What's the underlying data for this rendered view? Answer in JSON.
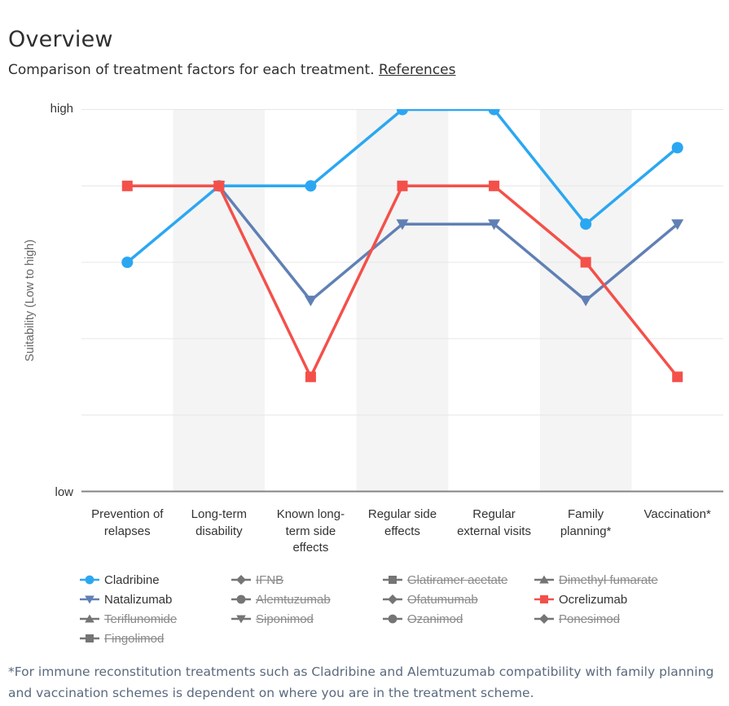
{
  "header": {
    "title": "Overview",
    "subtitle": "Comparison of treatment factors for each treatment.",
    "references_label": "References"
  },
  "chart_data": {
    "type": "line",
    "title": "Overview",
    "categories": [
      "Prevention of relapses",
      "Long-term disability",
      "Known long-term side effects",
      "Regular side effects",
      "Regular external visits",
      "Family planning*",
      "Vaccination*"
    ],
    "xlabel": "",
    "ylabel": "Suitability (Low to high)",
    "y_axis": {
      "high_label": "high",
      "low_label": "low",
      "min": 0,
      "max": 5,
      "gridlines": true,
      "numeric_ticks_hidden": true
    },
    "plot_band_color": "#f4f4f4",
    "plot_bands_on_category_indexes": [
      1,
      3,
      5
    ],
    "gridline_color": "#e6e6e6",
    "axis_line_color": "#848484",
    "legend_position": "bottom",
    "series": [
      {
        "name": "Cladribine",
        "color": "#2BA7F2",
        "marker": "circle",
        "visible": true,
        "values": [
          3,
          4,
          4,
          5,
          5,
          3.5,
          4.5
        ]
      },
      {
        "name": "Natalizumab",
        "color": "#6080B5",
        "marker": "triangle-down",
        "visible": true,
        "values": [
          null,
          4,
          2.5,
          3.5,
          3.5,
          2.5,
          3.5
        ]
      },
      {
        "name": "Ocrelizumab",
        "color": "#F4504A",
        "marker": "square",
        "visible": true,
        "values": [
          4,
          4,
          1.5,
          4,
          4,
          3,
          1.5
        ]
      }
    ],
    "hidden_series": [
      "IFNB",
      "Glatiramer acetate",
      "Dimethyl fumarate",
      "Alemtuzumab",
      "Ofatumumab",
      "Teriflunomide",
      "Siponimod",
      "Ozanimod",
      "Ponesimod",
      "Fingolimod"
    ]
  },
  "legend": {
    "disabled_color": "#757575",
    "items": [
      {
        "label": "Cladribine",
        "marker": "circle",
        "color": "#2BA7F2",
        "active": true
      },
      {
        "label": "IFNB",
        "marker": "diamond",
        "color": "#757575",
        "active": false
      },
      {
        "label": "Glatiramer acetate",
        "marker": "square",
        "color": "#757575",
        "active": false
      },
      {
        "label": "Dimethyl fumarate",
        "marker": "triangle",
        "color": "#757575",
        "active": false
      },
      {
        "label": "Natalizumab",
        "marker": "triangle-down",
        "color": "#6080B5",
        "active": true
      },
      {
        "label": "Alemtuzumab",
        "marker": "circle",
        "color": "#757575",
        "active": false
      },
      {
        "label": "Ofatumumab",
        "marker": "diamond",
        "color": "#757575",
        "active": false
      },
      {
        "label": "Ocrelizumab",
        "marker": "square",
        "color": "#F4504A",
        "active": true
      },
      {
        "label": "Teriflunomide",
        "marker": "triangle",
        "color": "#757575",
        "active": false
      },
      {
        "label": "Siponimod",
        "marker": "triangle-down",
        "color": "#757575",
        "active": false
      },
      {
        "label": "Ozanimod",
        "marker": "circle",
        "color": "#757575",
        "active": false
      },
      {
        "label": "Ponesimod",
        "marker": "diamond",
        "color": "#757575",
        "active": false
      },
      {
        "label": "Fingolimod",
        "marker": "square",
        "color": "#757575",
        "active": false
      }
    ]
  },
  "footnote": "*For immune reconstitution treatments such as Cladribine and Alemtuzumab compatibility with family planning and vaccination schemes is dependent on where you are in the treatment scheme."
}
